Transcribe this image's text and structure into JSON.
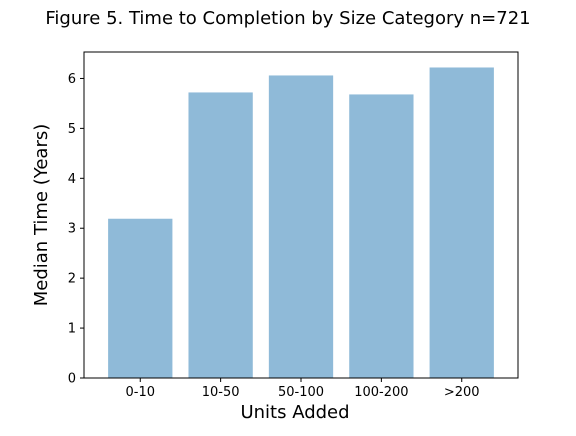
{
  "chart_data": {
    "type": "bar",
    "title": "Figure 5. Time to Completion by Size Category n=721",
    "xlabel": "Units Added",
    "ylabel": "Median Time (Years)",
    "categories": [
      "0-10",
      "10-50",
      "50-100",
      "100-200",
      ">200"
    ],
    "values": [
      3.19,
      5.72,
      6.06,
      5.68,
      6.22
    ],
    "ylim": [
      0,
      6.53
    ],
    "yticks": [
      0,
      1,
      2,
      3,
      4,
      5,
      6
    ],
    "grid": false,
    "bar_color": "#8fbad8"
  }
}
